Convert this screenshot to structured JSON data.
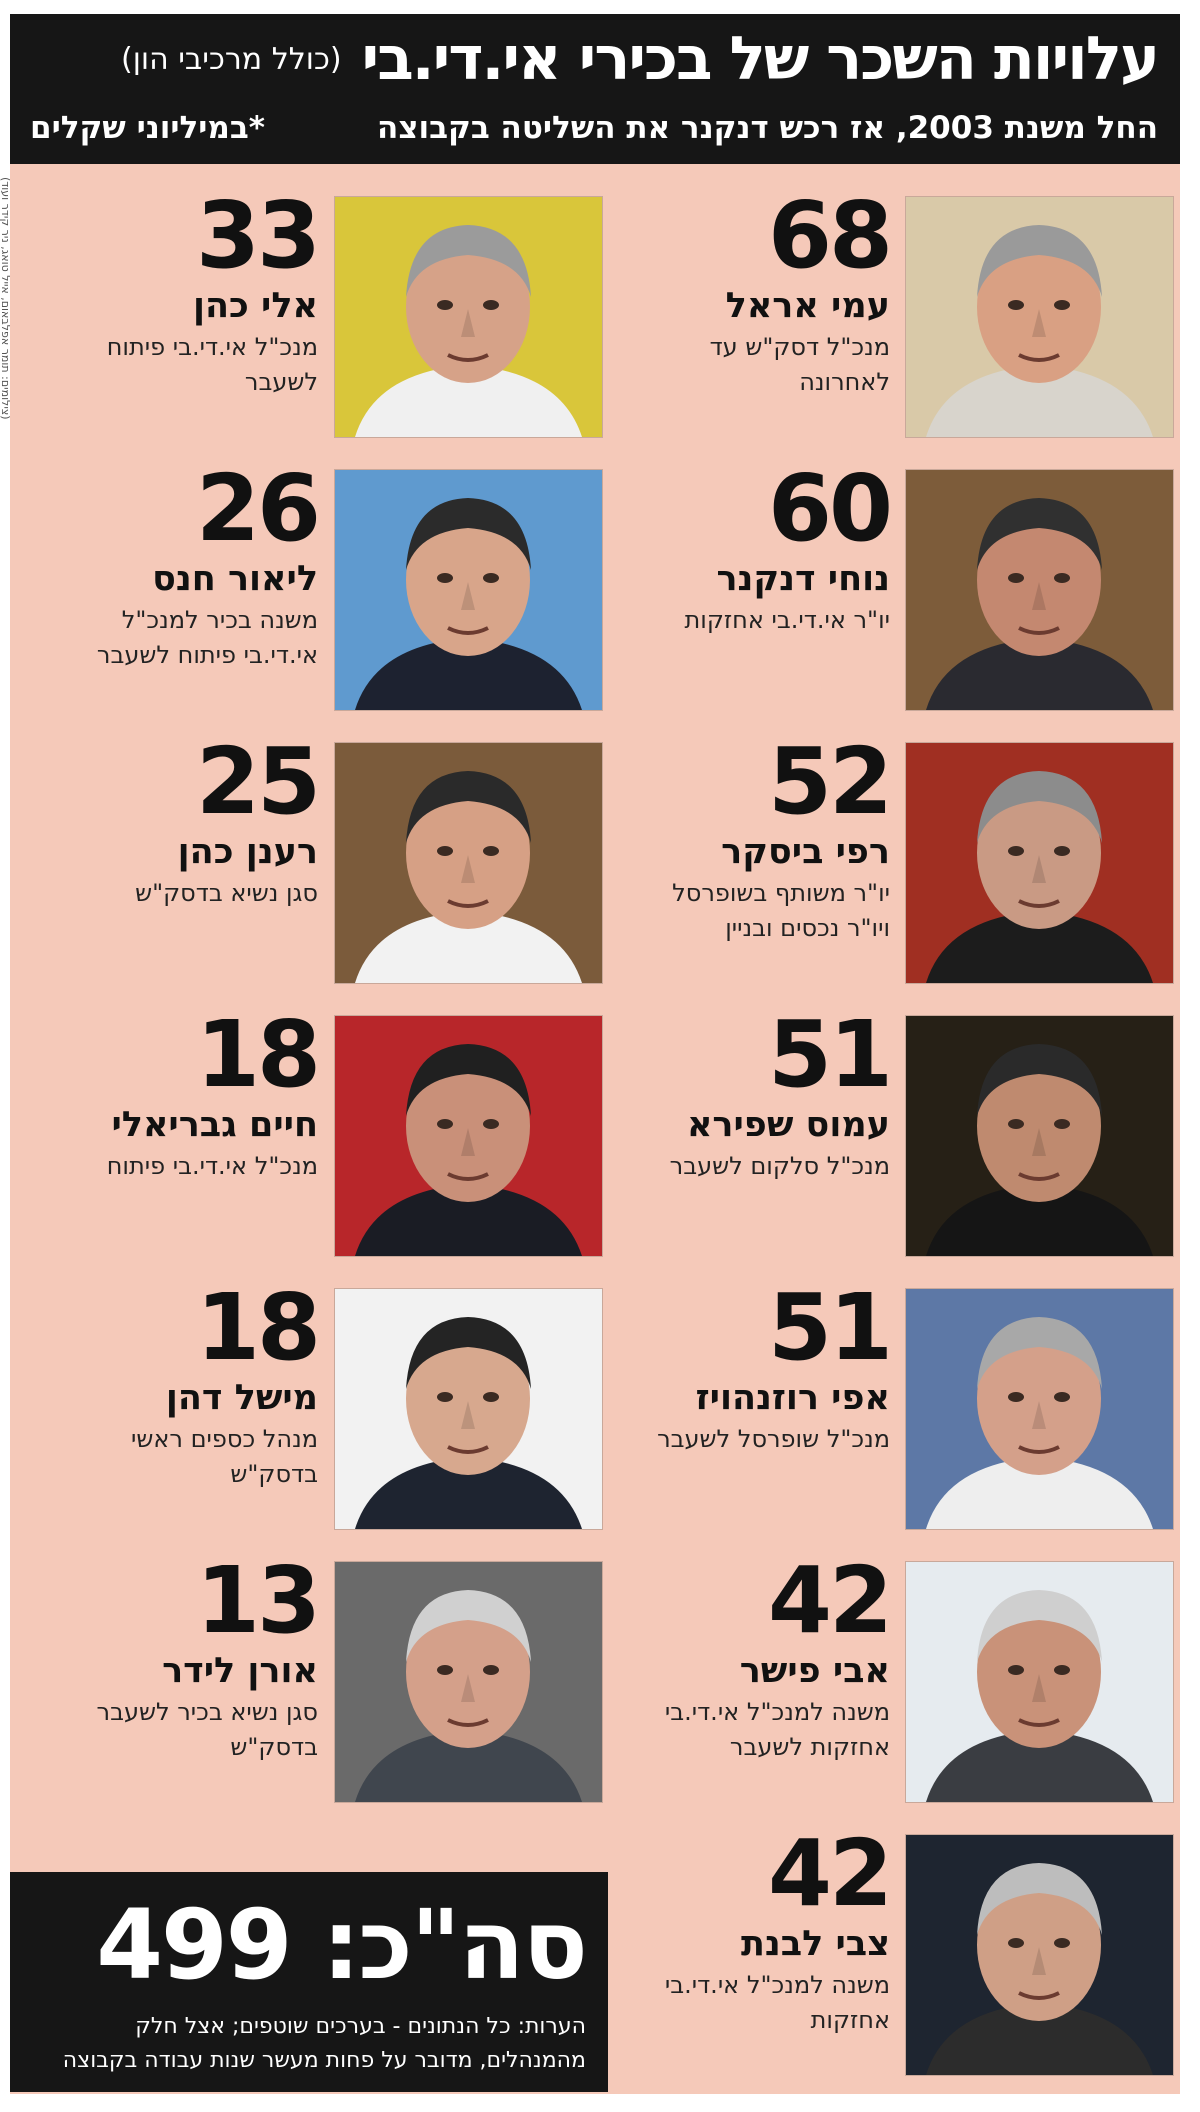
{
  "credit": "(צילומים: תומר אפלבאום, אייל טואג, ניר קידר ועוד)",
  "header": {
    "title": "עלויות השכר של בכירי אי.די.בי",
    "title_note": "(כולל מרכיבי הון)",
    "subtitle": "החל משנת 2003, אז רכש דנקנר את השליטה בקבוצה",
    "units": "*במיליוני שקלים"
  },
  "right_column": [
    {
      "amount": "68",
      "name": "עמי אראל",
      "role": "מנכ\"ל דסק\"ש עד לאחרונה"
    },
    {
      "amount": "60",
      "name": "נוחי דנקנר",
      "role": "יו\"ר אי.די.בי אחזקות"
    },
    {
      "amount": "52",
      "name": "רפי ביסקר",
      "role": "יו\"ר משותף בשופרסל ויו\"ר נכסים ובניין"
    },
    {
      "amount": "51",
      "name": "עמוס שפירא",
      "role": "מנכ\"ל סלקום לשעבר"
    },
    {
      "amount": "51",
      "name": "אפי רוזנהויז",
      "role": "מנכ\"ל שופרסל לשעבר"
    },
    {
      "amount": "42",
      "name": "אבי פישר",
      "role": "משנה למנכ\"ל אי.די.בי אחזקות לשעבר"
    },
    {
      "amount": "42",
      "name": "צבי לבנת",
      "role": "משנה למנכ\"ל אי.די.בי אחזקות"
    }
  ],
  "left_column": [
    {
      "amount": "33",
      "name": "אלי כהן",
      "role": "מנכ\"ל אי.די.בי פיתוח לשעבר"
    },
    {
      "amount": "26",
      "name": "ליאור חנס",
      "role": "משנה בכיר למנכ\"ל אי.די.בי פיתוח לשעבר"
    },
    {
      "amount": "25",
      "name": "רענן כהן",
      "role": "סגן נשיא בדסק\"ש"
    },
    {
      "amount": "18",
      "name": "חיים גבריאלי",
      "role": "מנכ\"ל אי.די.בי פיתוח"
    },
    {
      "amount": "18",
      "name": "מישל דהן",
      "role": "מנהל כספים ראשי בדסק\"ש"
    },
    {
      "amount": "13",
      "name": "אורן לידר",
      "role": "סגן נשיא בכיר לשעבר בדסק\"ש"
    }
  ],
  "total": {
    "text": "סה\"כ: 499",
    "notes": "הערות: כל הנתונים - בערכים שוטפים; אצל חלק מהמנהלים, מדובר על פחות מעשר שנות עבודה בקבוצה"
  },
  "colors": {
    "background": "#f5c9b9",
    "header_bg": "#161616",
    "text": "#111111"
  },
  "photos": [
    "person-photo"
  ]
}
